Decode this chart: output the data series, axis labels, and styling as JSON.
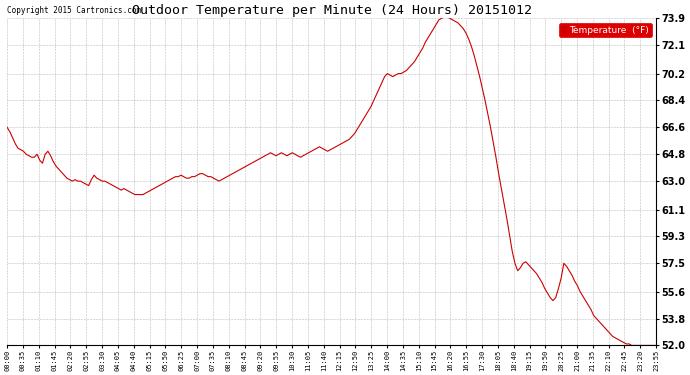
{
  "title": "Outdoor Temperature per Minute (24 Hours) 20151012",
  "copyright": "Copyright 2015 Cartronics.com",
  "legend_label": "Temperature  (°F)",
  "background_color": "#ffffff",
  "plot_bg_color": "#ffffff",
  "grid_color": "#aaaaaa",
  "line_color": "#cc0000",
  "yticks": [
    52.0,
    53.8,
    55.6,
    57.5,
    59.3,
    61.1,
    63.0,
    64.8,
    66.6,
    68.4,
    70.2,
    72.1,
    73.9
  ],
  "ymin": 52.0,
  "ymax": 73.9,
  "xtick_labels": [
    "00:00",
    "00:35",
    "01:10",
    "01:45",
    "02:20",
    "02:55",
    "03:30",
    "04:05",
    "04:40",
    "05:15",
    "05:50",
    "06:25",
    "07:00",
    "07:35",
    "08:10",
    "08:45",
    "09:20",
    "09:55",
    "10:30",
    "11:05",
    "11:40",
    "12:15",
    "12:50",
    "13:25",
    "14:00",
    "14:35",
    "15:10",
    "15:45",
    "16:20",
    "16:55",
    "17:30",
    "18:05",
    "18:40",
    "19:15",
    "19:50",
    "20:25",
    "21:00",
    "21:35",
    "22:10",
    "22:45",
    "23:20",
    "23:55"
  ],
  "temperature_profile": [
    66.6,
    66.3,
    65.9,
    65.5,
    65.2,
    65.1,
    65.0,
    64.8,
    64.7,
    64.6,
    64.6,
    64.8,
    64.4,
    64.2,
    64.8,
    65.0,
    64.7,
    64.3,
    64.0,
    63.8,
    63.6,
    63.4,
    63.2,
    63.1,
    63.0,
    63.1,
    63.0,
    63.0,
    62.9,
    62.8,
    62.7,
    63.1,
    63.4,
    63.2,
    63.1,
    63.0,
    63.0,
    62.9,
    62.8,
    62.7,
    62.6,
    62.5,
    62.4,
    62.5,
    62.4,
    62.3,
    62.2,
    62.1,
    62.1,
    62.1,
    62.1,
    62.2,
    62.3,
    62.4,
    62.5,
    62.6,
    62.7,
    62.8,
    62.9,
    63.0,
    63.1,
    63.2,
    63.3,
    63.3,
    63.4,
    63.3,
    63.2,
    63.2,
    63.3,
    63.3,
    63.4,
    63.5,
    63.5,
    63.4,
    63.3,
    63.3,
    63.2,
    63.1,
    63.0,
    63.1,
    63.2,
    63.3,
    63.4,
    63.5,
    63.6,
    63.7,
    63.8,
    63.9,
    64.0,
    64.1,
    64.2,
    64.3,
    64.4,
    64.5,
    64.6,
    64.7,
    64.8,
    64.9,
    64.8,
    64.7,
    64.8,
    64.9,
    64.8,
    64.7,
    64.8,
    64.9,
    64.8,
    64.7,
    64.6,
    64.7,
    64.8,
    64.9,
    65.0,
    65.1,
    65.2,
    65.3,
    65.2,
    65.1,
    65.0,
    65.1,
    65.2,
    65.3,
    65.4,
    65.5,
    65.6,
    65.7,
    65.8,
    66.0,
    66.2,
    66.5,
    66.8,
    67.1,
    67.4,
    67.7,
    68.0,
    68.4,
    68.8,
    69.2,
    69.6,
    70.0,
    70.2,
    70.1,
    70.0,
    70.1,
    70.2,
    70.2,
    70.3,
    70.4,
    70.6,
    70.8,
    71.0,
    71.3,
    71.6,
    71.9,
    72.3,
    72.6,
    72.9,
    73.2,
    73.5,
    73.8,
    73.9,
    74.0,
    74.0,
    73.9,
    73.8,
    73.7,
    73.6,
    73.4,
    73.2,
    72.9,
    72.5,
    72.0,
    71.4,
    70.7,
    70.0,
    69.2,
    68.4,
    67.5,
    66.6,
    65.6,
    64.6,
    63.5,
    62.5,
    61.5,
    60.5,
    59.4,
    58.3,
    57.5,
    57.0,
    57.2,
    57.5,
    57.6,
    57.4,
    57.2,
    57.0,
    56.8,
    56.5,
    56.2,
    55.8,
    55.5,
    55.2,
    55.0,
    55.2,
    55.8,
    56.5,
    57.5,
    57.3,
    57.0,
    56.7,
    56.3,
    56.0,
    55.6,
    55.3,
    55.0,
    54.7,
    54.4,
    54.0,
    53.8,
    53.6,
    53.4,
    53.2,
    53.0,
    52.8,
    52.6,
    52.5,
    52.4,
    52.3,
    52.2,
    52.1,
    52.1,
    52.0,
    52.0,
    52.0,
    52.0,
    52.0,
    52.0,
    52.0,
    52.0,
    52.0,
    52.0
  ]
}
